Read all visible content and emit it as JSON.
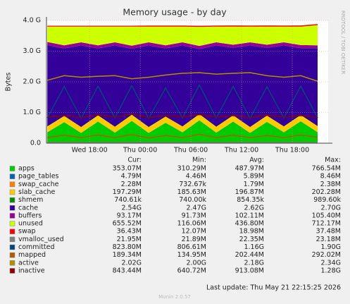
{
  "chart_data": {
    "type": "area",
    "title": "Memory usage - by day",
    "y_label": "Bytes",
    "side_label": "RRDTOOL / TOBI OETIKER",
    "columns": [
      "Cur:",
      "Min:",
      "Avg:",
      "Max:"
    ],
    "last_update": "Last update: Thu May 21 22:15:25 2026",
    "footer": "Munin 2.0.57",
    "grid": true,
    "x": [
      13,
      15,
      17,
      19,
      21,
      23,
      25,
      27,
      29,
      31,
      33,
      35,
      37,
      39,
      41,
      43,
      45
    ],
    "xlim": [
      12.9,
      46.25
    ],
    "xticks": [
      {
        "value": 18,
        "label": "Wed 18:00"
      },
      {
        "value": 24,
        "label": "Thu 00:00"
      },
      {
        "value": 30,
        "label": "Thu 06:00"
      },
      {
        "value": 36,
        "label": "Thu 12:00"
      },
      {
        "value": 42,
        "label": "Thu 18:00"
      }
    ],
    "ylim": [
      0,
      4
    ],
    "yticks": [
      {
        "value": 0,
        "label": "0.0"
      },
      {
        "value": 1,
        "label": "1.0 G"
      },
      {
        "value": 2,
        "label": "2.0 G"
      },
      {
        "value": 3,
        "label": "3.0 G"
      },
      {
        "value": 4,
        "label": "4.0 G"
      }
    ],
    "series": [
      {
        "name": "apps",
        "color": "#00CC00",
        "stack": true,
        "cur": "353.07M",
        "min": "310.29M",
        "avg": "487.97M",
        "max": "766.54M",
        "values": [
          0.35,
          0.68,
          0.33,
          0.7,
          0.34,
          0.72,
          0.33,
          0.66,
          0.35,
          0.74,
          0.34,
          0.7,
          0.33,
          0.69,
          0.35,
          0.71,
          0.353
        ]
      },
      {
        "name": "page_tables",
        "color": "#0066B3",
        "stack": true,
        "cur": "4.79M",
        "min": "4.46M",
        "avg": "5.89M",
        "max": "8.46M",
        "values": [
          0.005,
          0.006,
          0.005,
          0.006,
          0.005,
          0.006,
          0.005,
          0.006,
          0.005,
          0.006,
          0.005,
          0.006,
          0.005,
          0.006,
          0.005,
          0.006,
          0.0048
        ]
      },
      {
        "name": "swap_cache",
        "color": "#FF8000",
        "stack": true,
        "cur": "2.28M",
        "min": "732.67k",
        "avg": "1.79M",
        "max": "2.38M",
        "values": [
          0.002,
          0.002,
          0.002,
          0.002,
          0.002,
          0.002,
          0.002,
          0.002,
          0.002,
          0.002,
          0.002,
          0.002,
          0.002,
          0.002,
          0.002,
          0.002,
          0.0023
        ]
      },
      {
        "name": "slab_cache",
        "color": "#FFCC00",
        "stack": true,
        "cur": "197.29M",
        "min": "185.63M",
        "avg": "196.87M",
        "max": "202.28M",
        "values": [
          0.19,
          0.2,
          0.19,
          0.2,
          0.19,
          0.2,
          0.19,
          0.2,
          0.19,
          0.2,
          0.19,
          0.2,
          0.19,
          0.2,
          0.19,
          0.2,
          0.197
        ]
      },
      {
        "name": "shmem",
        "color": "#008F00",
        "stack": true,
        "cur": "740.61k",
        "min": "740.00k",
        "avg": "854.35k",
        "max": "989.60k",
        "values": [
          0.0008,
          0.0009,
          0.0008,
          0.0009,
          0.0008,
          0.0009,
          0.0008,
          0.0009,
          0.0008,
          0.0009,
          0.0008,
          0.0009,
          0.0008,
          0.0009,
          0.0008,
          0.0009,
          0.00074
        ]
      },
      {
        "name": "cache",
        "color": "#330099",
        "stack": true,
        "cur": "2.54G",
        "min": "2.47G",
        "avg": "2.62G",
        "max": "2.70G",
        "values": [
          2.65,
          2.2,
          2.66,
          2.18,
          2.65,
          2.15,
          2.66,
          2.22,
          2.64,
          2.12,
          2.65,
          2.2,
          2.66,
          2.21,
          2.64,
          2.18,
          2.54
        ]
      },
      {
        "name": "buffers",
        "color": "#990099",
        "stack": true,
        "cur": "93.17M",
        "min": "91.73M",
        "avg": "102.11M",
        "max": "105.40M",
        "values": [
          0.1,
          0.1,
          0.1,
          0.1,
          0.1,
          0.1,
          0.1,
          0.1,
          0.1,
          0.1,
          0.1,
          0.1,
          0.1,
          0.1,
          0.1,
          0.1,
          0.093
        ]
      },
      {
        "name": "unused",
        "color": "#CCFF00",
        "stack": true,
        "cur": "655.52M",
        "min": "116.06M",
        "avg": "436.80M",
        "max": "712.17M",
        "values": [
          0.5,
          0.61,
          0.51,
          0.61,
          0.51,
          0.62,
          0.51,
          0.61,
          0.51,
          0.62,
          0.51,
          0.59,
          0.51,
          0.59,
          0.51,
          0.6,
          0.6555
        ]
      },
      {
        "name": "swap",
        "color": "#FF0000",
        "stack": true,
        "cur": "36.43M",
        "min": "12.07M",
        "avg": "18.98M",
        "max": "37.48M",
        "values": [
          0.03,
          0.03,
          0.03,
          0.03,
          0.03,
          0.03,
          0.035,
          0.035,
          0.035,
          0.035,
          0.035,
          0.036,
          0.036,
          0.036,
          0.036,
          0.036,
          0.0364
        ]
      },
      {
        "name": "vmalloc_used",
        "color": "#808080",
        "stack": false,
        "cur": "21.95M",
        "min": "21.89M",
        "avg": "22.35M",
        "max": "23.18M",
        "values": [
          0.022,
          0.022,
          0.022,
          0.022,
          0.022,
          0.022,
          0.022,
          0.022,
          0.022,
          0.022,
          0.022,
          0.022,
          0.022,
          0.022,
          0.022,
          0.022,
          0.022
        ]
      },
      {
        "name": "committed",
        "color": "#00487D",
        "stack": false,
        "cur": "823.80M",
        "min": "806.61M",
        "avg": "1.16G",
        "max": "1.90G",
        "values": [
          0.82,
          1.85,
          0.81,
          1.86,
          0.82,
          1.88,
          0.81,
          1.8,
          0.82,
          1.9,
          0.82,
          1.85,
          0.81,
          1.84,
          0.82,
          1.86,
          0.824
        ]
      },
      {
        "name": "mapped",
        "color": "#B35A00",
        "stack": false,
        "cur": "189.34M",
        "min": "134.95M",
        "avg": "202.44M",
        "max": "292.02M",
        "values": [
          0.18,
          0.26,
          0.18,
          0.27,
          0.18,
          0.28,
          0.17,
          0.25,
          0.18,
          0.29,
          0.18,
          0.26,
          0.18,
          0.25,
          0.18,
          0.27,
          0.189
        ]
      },
      {
        "name": "active",
        "color": "#B38F00",
        "stack": false,
        "cur": "2.02G",
        "min": "2.00G",
        "avg": "2.18G",
        "max": "2.34G",
        "values": [
          2.05,
          2.2,
          2.15,
          2.18,
          2.2,
          2.1,
          2.15,
          2.22,
          2.28,
          2.3,
          2.25,
          2.28,
          2.3,
          2.2,
          2.15,
          2.2,
          2.02
        ]
      },
      {
        "name": "inactive",
        "color": "#8F0000",
        "stack": false,
        "cur": "843.44M",
        "min": "640.72M",
        "avg": "913.08M",
        "max": "1.28G",
        "values": [
          0.85,
          0.9,
          0.84,
          0.92,
          0.85,
          0.95,
          0.84,
          0.9,
          0.86,
          0.93,
          0.85,
          0.9,
          0.84,
          0.91,
          0.85,
          0.9,
          0.843
        ]
      }
    ]
  }
}
